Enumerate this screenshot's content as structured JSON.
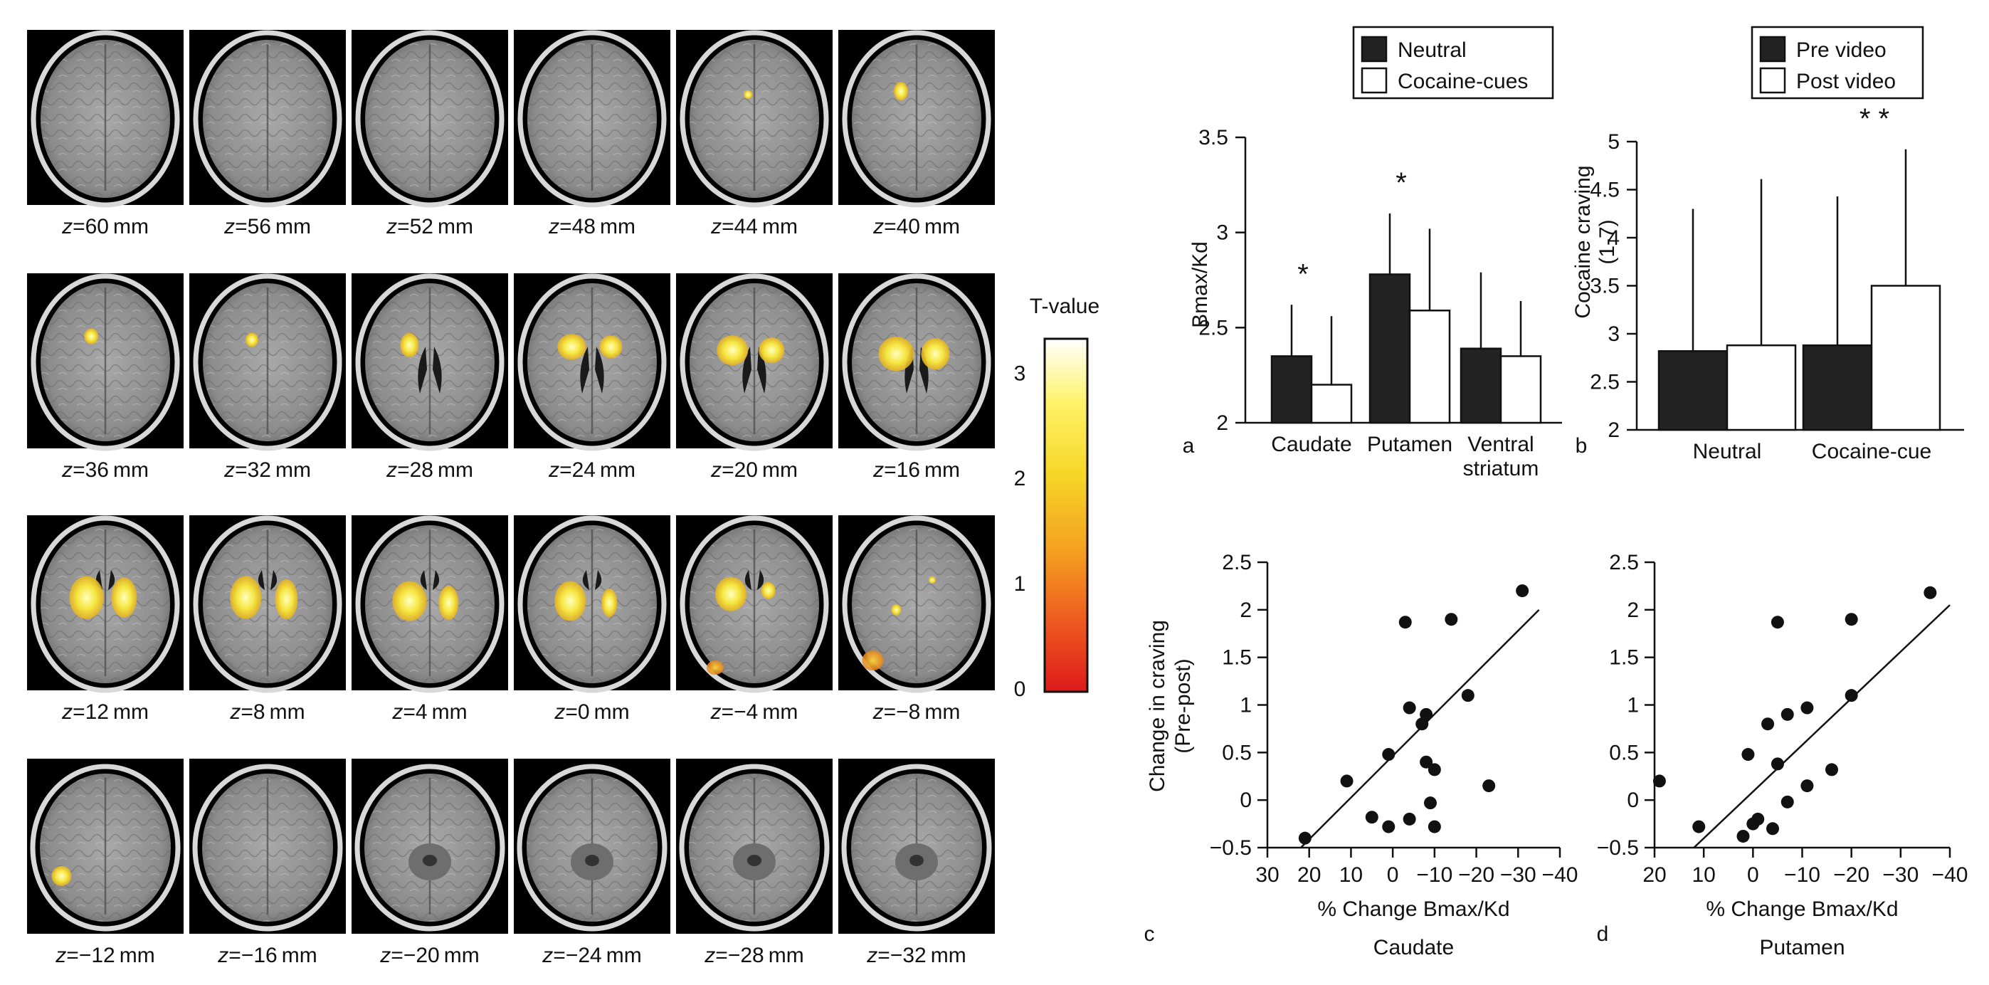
{
  "brain_panel": {
    "rows": [
      [
        "60",
        "56",
        "52",
        "48",
        "44",
        "40"
      ],
      [
        "36",
        "32",
        "28",
        "24",
        "20",
        "16"
      ],
      [
        "12",
        "8",
        "4",
        "0",
        "−4",
        "−8"
      ],
      [
        "−12",
        "−16",
        "−20",
        "−24",
        "−28",
        "−32"
      ]
    ],
    "z_prefix": "z",
    "unit": "mm",
    "colorbar": {
      "title": "T-value",
      "ticks": [
        "3",
        "2",
        "1",
        "0"
      ],
      "colors": [
        "#ffffff",
        "#fff36a",
        "#f7d728",
        "#f4a020",
        "#ee5a20",
        "#dd1a1a"
      ]
    }
  },
  "chart_data": [
    {
      "panel": "a",
      "type": "bar",
      "categories": [
        "Caudate",
        "Putamen",
        "Ventral striatum"
      ],
      "category_lines": [
        [
          "Caudate"
        ],
        [
          "Putamen"
        ],
        [
          "Ventral",
          "striatum"
        ]
      ],
      "series": [
        {
          "name": "Neutral",
          "values": [
            2.35,
            2.78,
            2.39
          ],
          "errors": [
            0.27,
            0.32,
            0.4
          ],
          "fill": "#222222"
        },
        {
          "name": "Cocaine-cues",
          "values": [
            2.2,
            2.59,
            2.35
          ],
          "errors": [
            0.36,
            0.43,
            0.29
          ],
          "fill": "#ffffff"
        }
      ],
      "significance": [
        "*",
        "*",
        ""
      ],
      "ylabel": "Bmax/Kd",
      "ylim": [
        2,
        3.5
      ],
      "yticks": [
        "2",
        "2.5",
        "3",
        "3.5"
      ],
      "legend_placement": "top"
    },
    {
      "panel": "b",
      "type": "bar",
      "categories": [
        "Neutral",
        "Cocaine-cue"
      ],
      "series": [
        {
          "name": "Pre video",
          "values": [
            2.82,
            2.88
          ],
          "errors": [
            1.48,
            1.55
          ],
          "fill": "#222222"
        },
        {
          "name": "Post video",
          "values": [
            2.88,
            3.5
          ],
          "errors": [
            1.73,
            1.42
          ],
          "fill": "#ffffff"
        }
      ],
      "significance": [
        "",
        "* *"
      ],
      "ylabel": [
        "Cocaine craving",
        "(1-7)"
      ],
      "ylim": [
        2,
        5
      ],
      "yticks": [
        "2",
        "2.5",
        "3",
        "3.5",
        "4",
        "4.5",
        "5"
      ],
      "legend_placement": "top"
    },
    {
      "panel": "c",
      "type": "scatter",
      "caption": "Caudate",
      "xlabel": "% Change Bmax/Kd",
      "ylabel": [
        "Change in craving",
        "(Pre-post)"
      ],
      "xlim": [
        30,
        -40
      ],
      "ylim": [
        -0.5,
        2.5
      ],
      "xticks": [
        "30",
        "20",
        "10",
        "0",
        "−10",
        "−20",
        "−30",
        "−40"
      ],
      "yticks": [
        "−0.5",
        "0",
        "0.5",
        "1",
        "1.5",
        "2",
        "2.5"
      ],
      "points": [
        {
          "x": 21,
          "y": -0.4
        },
        {
          "x": 11,
          "y": 0.2
        },
        {
          "x": 5,
          "y": -0.18
        },
        {
          "x": 1,
          "y": 0.48
        },
        {
          "x": 1,
          "y": -0.28
        },
        {
          "x": -3,
          "y": 1.87
        },
        {
          "x": -4,
          "y": -0.2
        },
        {
          "x": -4,
          "y": 0.97
        },
        {
          "x": -7,
          "y": 0.8
        },
        {
          "x": -8,
          "y": 0.9
        },
        {
          "x": -8,
          "y": 0.4
        },
        {
          "x": -9,
          "y": -0.03
        },
        {
          "x": -10,
          "y": -0.28
        },
        {
          "x": -10,
          "y": 0.32
        },
        {
          "x": -14,
          "y": 1.9
        },
        {
          "x": -18,
          "y": 1.1
        },
        {
          "x": -23,
          "y": 0.15
        },
        {
          "x": -31,
          "y": 2.2
        }
      ],
      "fit_line": [
        {
          "x": 22,
          "y": -0.5
        },
        {
          "x": -35,
          "y": 2.0
        }
      ]
    },
    {
      "panel": "d",
      "type": "scatter",
      "caption": "Putamen",
      "xlabel": "% Change Bmax/Kd",
      "xlim": [
        20,
        -40
      ],
      "ylim": [
        -0.5,
        2.5
      ],
      "xticks": [
        "20",
        "10",
        "0",
        "−10",
        "−20",
        "−30",
        "−40"
      ],
      "yticks": [
        "−0.5",
        "0",
        "0.5",
        "1",
        "1.5",
        "2",
        "2.5"
      ],
      "points": [
        {
          "x": 19,
          "y": 0.2
        },
        {
          "x": 11,
          "y": -0.28
        },
        {
          "x": 2,
          "y": -0.38
        },
        {
          "x": 1,
          "y": 0.48
        },
        {
          "x": 0,
          "y": -0.25
        },
        {
          "x": -1,
          "y": -0.2
        },
        {
          "x": -3,
          "y": 0.8
        },
        {
          "x": -4,
          "y": -0.3
        },
        {
          "x": -5,
          "y": 0.38
        },
        {
          "x": -5,
          "y": 1.87
        },
        {
          "x": -7,
          "y": 0.9
        },
        {
          "x": -7,
          "y": -0.02
        },
        {
          "x": -11,
          "y": 0.15
        },
        {
          "x": -11,
          "y": 0.97
        },
        {
          "x": -16,
          "y": 0.32
        },
        {
          "x": -20,
          "y": 1.1
        },
        {
          "x": -20,
          "y": 1.9
        },
        {
          "x": -36,
          "y": 2.18
        }
      ],
      "fit_line": [
        {
          "x": 12,
          "y": -0.5
        },
        {
          "x": -40,
          "y": 2.05
        }
      ]
    }
  ]
}
